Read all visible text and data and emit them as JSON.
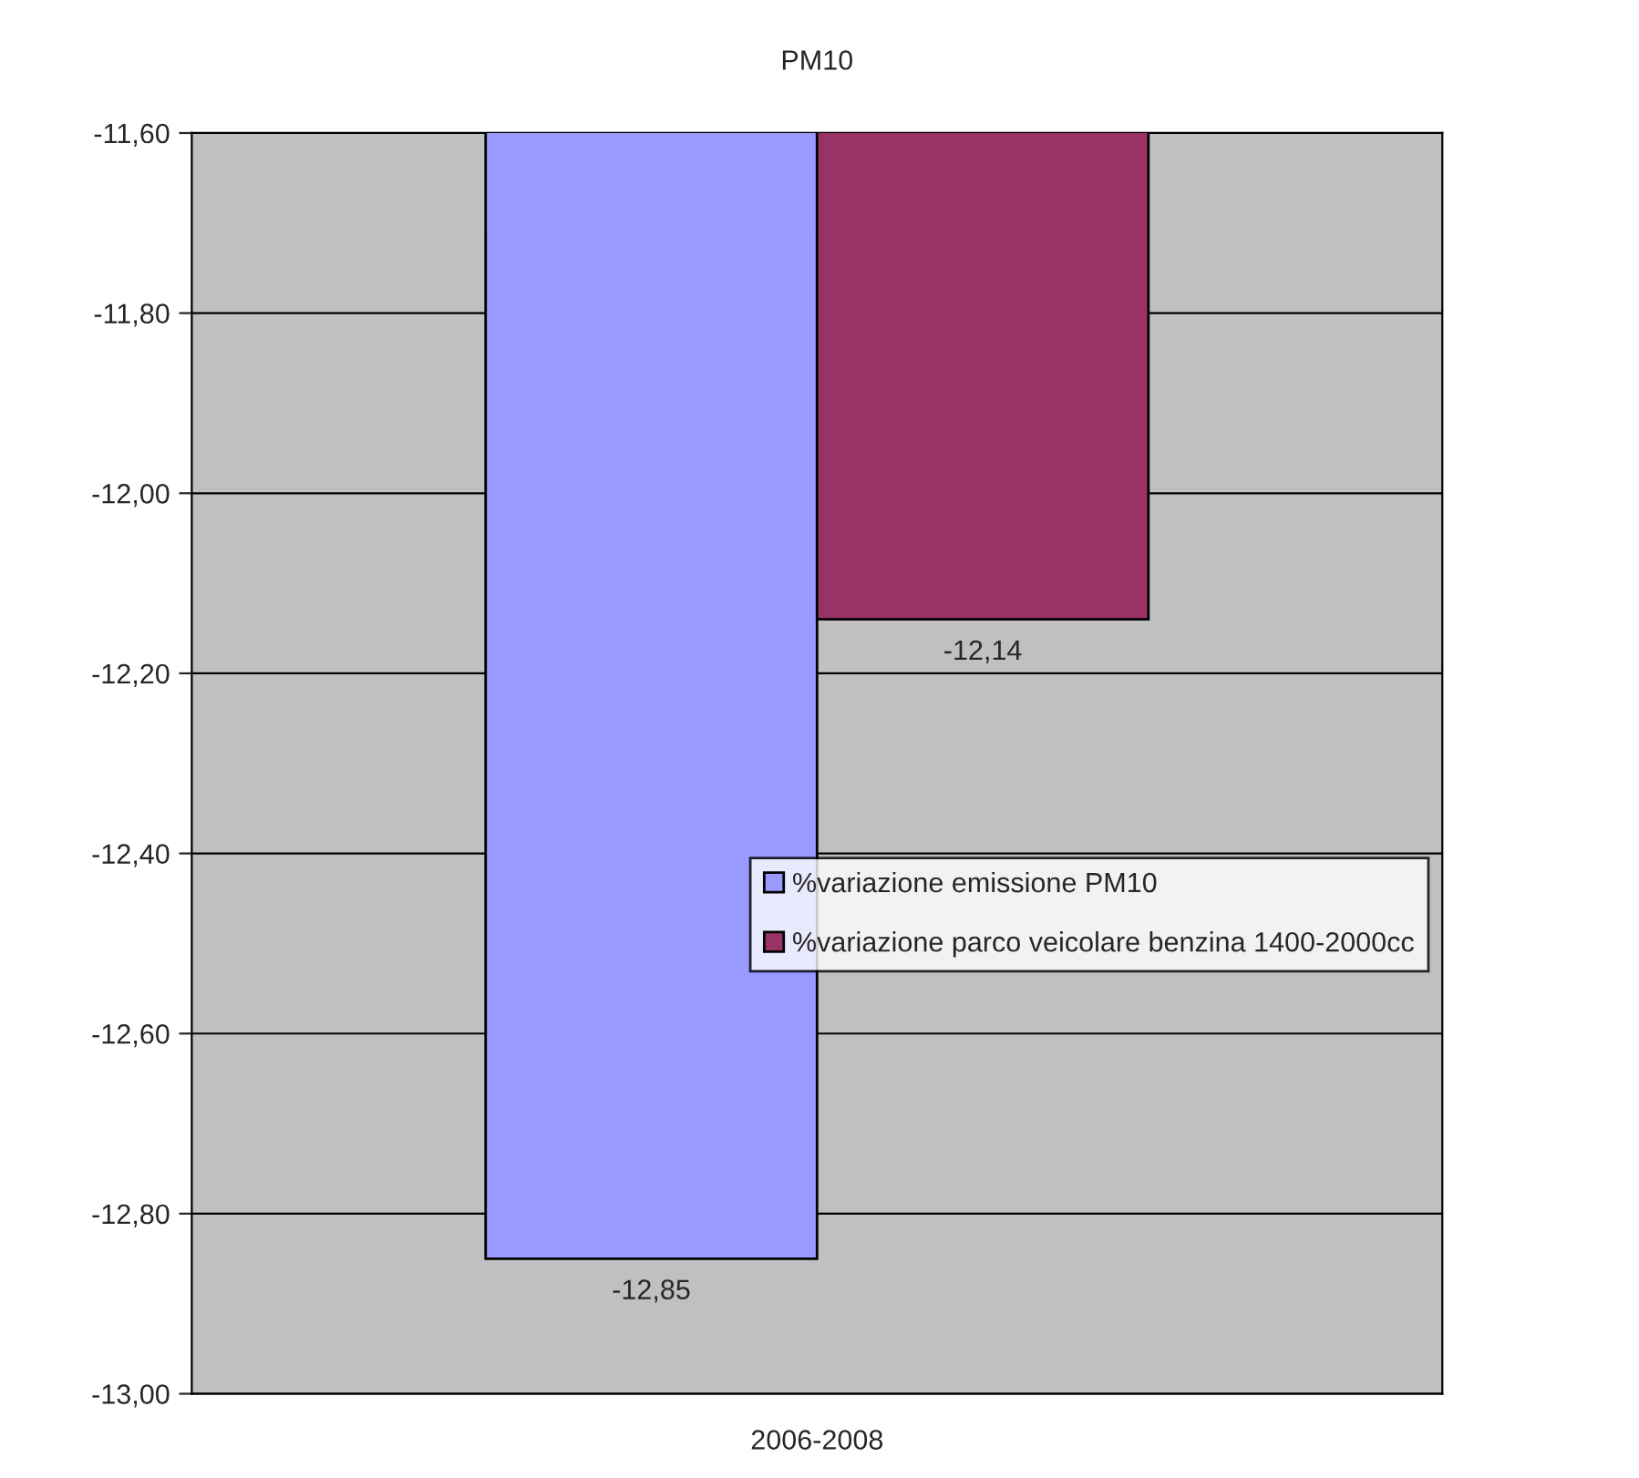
{
  "chart_data": {
    "type": "bar",
    "title": "PM10",
    "categories": [
      "2006-2008"
    ],
    "series": [
      {
        "name": "%variazione emissione PM10",
        "color": "#9999ff",
        "values": [
          -12.85
        ],
        "value_labels": [
          "-12,85"
        ]
      },
      {
        "name": "%variazione parco veicolare benzina 1400-2000cc",
        "color": "#993366",
        "values": [
          -12.14
        ],
        "value_labels": [
          "-12,14"
        ]
      }
    ],
    "ylim": [
      -13.0,
      -11.6
    ],
    "yticks": [
      {
        "value": -13.0,
        "label": "-13,00"
      },
      {
        "value": -12.8,
        "label": "-12,80"
      },
      {
        "value": -12.6,
        "label": "-12,60"
      },
      {
        "value": -12.4,
        "label": "-12,40"
      },
      {
        "value": -12.2,
        "label": "-12,20"
      },
      {
        "value": -12.0,
        "label": "-12,00"
      },
      {
        "value": -11.8,
        "label": "-11,80"
      },
      {
        "value": -11.6,
        "label": "-11,60"
      }
    ],
    "grid": "y",
    "legend": "right"
  }
}
